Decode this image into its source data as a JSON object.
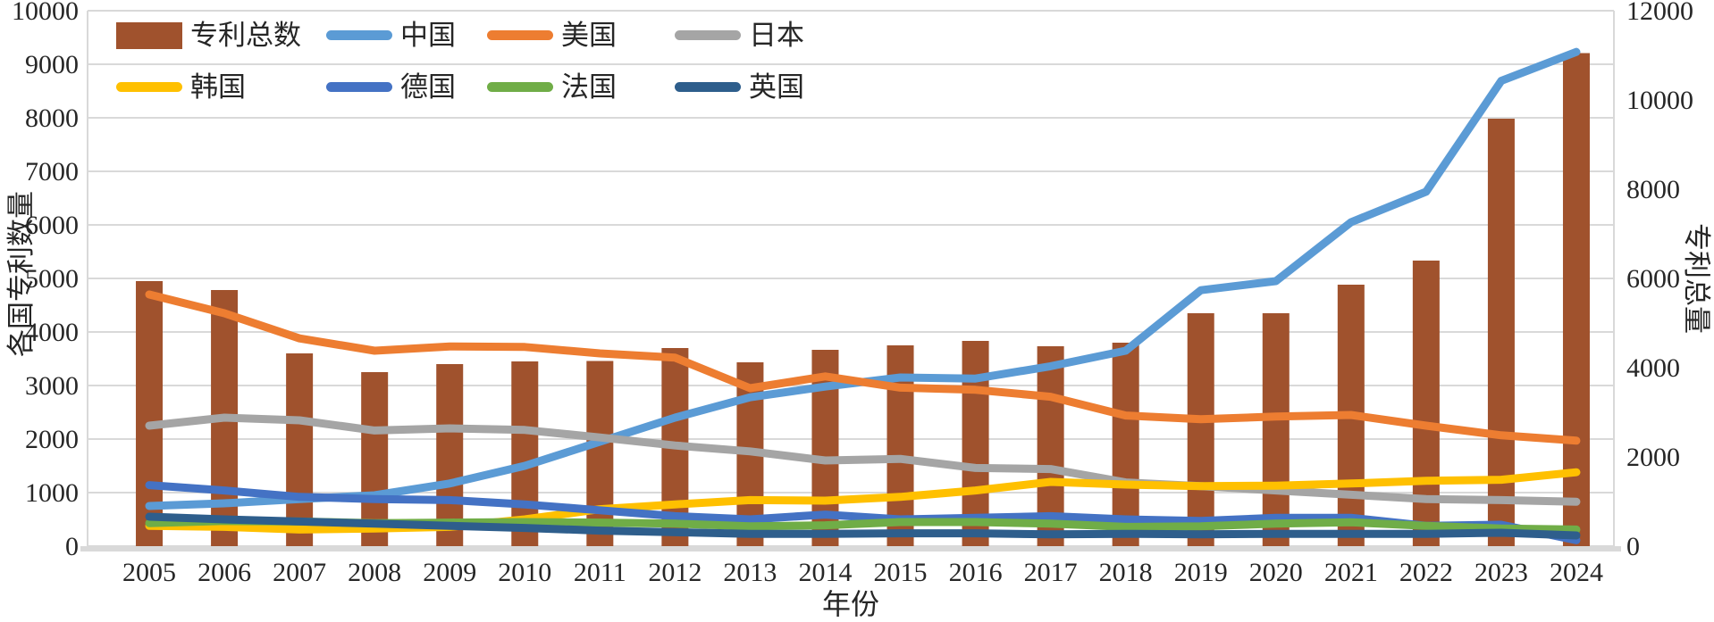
{
  "chart_data": {
    "type": "bar",
    "subtype": "combo-bar-line-dual-axis",
    "title": "",
    "xlabel": "年份",
    "categories": [
      "2005",
      "2006",
      "2007",
      "2008",
      "2009",
      "2010",
      "2011",
      "2012",
      "2013",
      "2014",
      "2015",
      "2016",
      "2017",
      "2018",
      "2019",
      "2020",
      "2021",
      "2022",
      "2023",
      "2024"
    ],
    "left_axis": {
      "label": "各国专利数量",
      "min": 0,
      "max": 10000,
      "step": 1000,
      "ticks": [
        "0",
        "1000",
        "2000",
        "3000",
        "4000",
        "5000",
        "6000",
        "7000",
        "8000",
        "9000",
        "10000"
      ]
    },
    "right_axis": {
      "label": "专利总量",
      "min": 0,
      "max": 12000,
      "step": 2000,
      "ticks": [
        "0",
        "2000",
        "4000",
        "6000",
        "8000",
        "10000",
        "12000"
      ]
    },
    "grid": "horizontal",
    "legend_position": "inside-top-left-two-rows",
    "series": [
      {
        "name": "专利总数",
        "type": "bar",
        "axis": "right",
        "color": "#A0522D",
        "values": [
          5940,
          5740,
          4320,
          3900,
          4080,
          4140,
          4150,
          4440,
          4120,
          4400,
          4500,
          4600,
          4480,
          4560,
          5220,
          5220,
          5860,
          6400,
          9580,
          11050
        ]
      },
      {
        "name": "中国",
        "type": "line",
        "axis": "left",
        "color": "#5B9BD5",
        "values": [
          750,
          800,
          880,
          950,
          1170,
          1500,
          1950,
          2400,
          2780,
          2980,
          3150,
          3130,
          3360,
          3650,
          4780,
          4950,
          6050,
          6620,
          8690,
          9230
        ]
      },
      {
        "name": "美国",
        "type": "line",
        "axis": "left",
        "color": "#ED7D31",
        "values": [
          4700,
          4350,
          3880,
          3650,
          3730,
          3720,
          3600,
          3520,
          2950,
          3170,
          2960,
          2920,
          2790,
          2440,
          2370,
          2420,
          2450,
          2250,
          2070,
          1970
        ]
      },
      {
        "name": "日本",
        "type": "line",
        "axis": "left",
        "color": "#A5A5A5",
        "values": [
          2250,
          2400,
          2350,
          2160,
          2200,
          2170,
          2030,
          1880,
          1770,
          1600,
          1630,
          1460,
          1440,
          1190,
          1120,
          1040,
          960,
          880,
          860,
          830
        ]
      },
      {
        "name": "韩国",
        "type": "line",
        "axis": "left",
        "color": "#FFC000",
        "values": [
          380,
          360,
          310,
          330,
          360,
          500,
          690,
          780,
          860,
          850,
          920,
          1040,
          1200,
          1150,
          1120,
          1130,
          1170,
          1220,
          1240,
          1380
        ]
      },
      {
        "name": "德国",
        "type": "line",
        "axis": "left",
        "color": "#4472C4",
        "values": [
          1140,
          1040,
          920,
          880,
          860,
          780,
          670,
          560,
          500,
          590,
          500,
          530,
          560,
          500,
          470,
          530,
          530,
          380,
          400,
          110
        ]
      },
      {
        "name": "法国",
        "type": "line",
        "axis": "left",
        "color": "#70AD47",
        "values": [
          430,
          470,
          460,
          430,
          440,
          450,
          440,
          420,
          370,
          390,
          450,
          450,
          420,
          360,
          370,
          420,
          445,
          380,
          330,
          310
        ]
      },
      {
        "name": "英国",
        "type": "line",
        "axis": "left",
        "color": "#2E5E8C",
        "values": [
          550,
          500,
          460,
          420,
          380,
          340,
          290,
          260,
          230,
          230,
          240,
          240,
          220,
          230,
          220,
          230,
          230,
          230,
          250,
          200
        ]
      }
    ]
  }
}
